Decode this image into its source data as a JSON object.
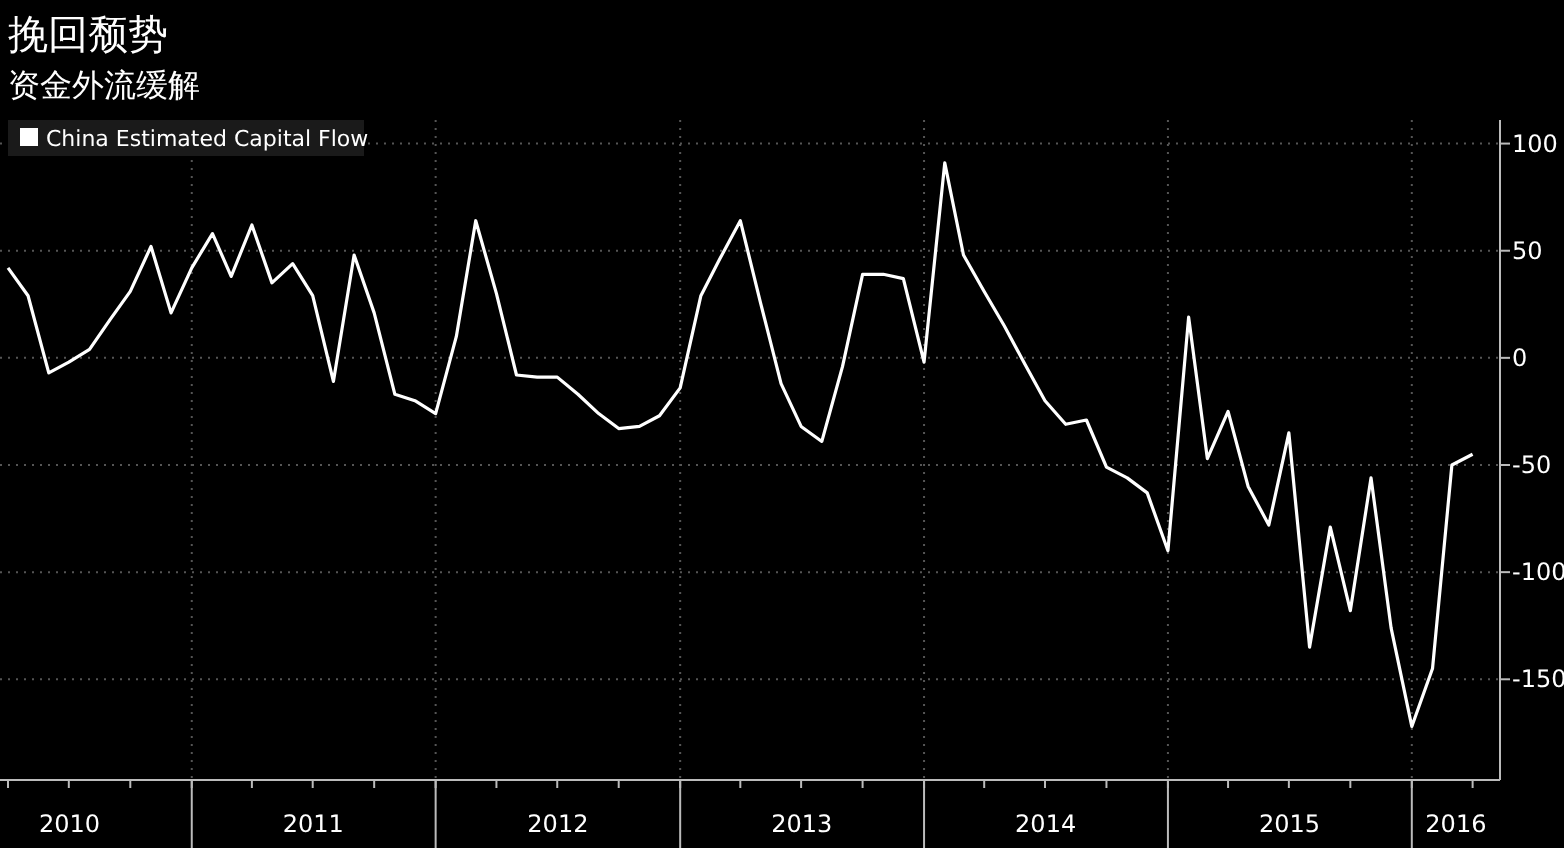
{
  "chart_data": {
    "type": "line",
    "title": "挽回颓势",
    "subtitle": "资金外流缓解",
    "legend": "top left",
    "grid": true,
    "line_style": "solid",
    "marker": "none",
    "x": [
      "2010-04",
      "2010-05",
      "2010-06",
      "2010-07",
      "2010-08",
      "2010-09",
      "2010-10",
      "2010-11",
      "2010-12",
      "2011-01",
      "2011-02",
      "2011-03",
      "2011-04",
      "2011-05",
      "2011-06",
      "2011-07",
      "2011-08",
      "2011-09",
      "2011-10",
      "2011-11",
      "2011-12",
      "2012-01",
      "2012-02",
      "2012-03",
      "2012-04",
      "2012-05",
      "2012-06",
      "2012-07",
      "2012-08",
      "2012-09",
      "2012-10",
      "2012-11",
      "2012-12",
      "2013-01",
      "2013-02",
      "2013-03",
      "2013-04",
      "2013-05",
      "2013-06",
      "2013-07",
      "2013-08",
      "2013-09",
      "2013-10",
      "2013-11",
      "2013-12",
      "2014-01",
      "2014-02",
      "2014-03",
      "2014-04",
      "2014-05",
      "2014-06",
      "2014-07",
      "2014-08",
      "2014-09",
      "2014-10",
      "2014-11",
      "2014-12",
      "2015-01",
      "2015-02",
      "2015-03",
      "2015-04",
      "2015-05",
      "2015-06",
      "2015-07",
      "2015-08",
      "2015-09",
      "2015-10",
      "2015-11",
      "2015-12",
      "2016-01",
      "2016-02",
      "2016-03",
      "2016-04"
    ],
    "series": [
      {
        "name": "China Estimated Capital Flow",
        "color": "#ffffff",
        "values": [
          42,
          29,
          -7,
          -2,
          4,
          18,
          31,
          52,
          21,
          42,
          58,
          38,
          62,
          35,
          44,
          29,
          -11,
          48,
          21,
          -17,
          -20,
          -26,
          10,
          64,
          30,
          -8,
          -9,
          -9,
          -17,
          -26,
          -33,
          -32,
          -27,
          -14,
          29,
          46,
          64,
          26,
          -12,
          -32,
          -39,
          -4,
          39,
          39,
          37,
          -2,
          91,
          48,
          31,
          15,
          -3,
          -20,
          -31,
          -29,
          -51,
          -56,
          -63,
          -90,
          19,
          -47,
          -25,
          -60,
          -78,
          -35,
          -135,
          -79,
          -118,
          -56,
          -126,
          -172,
          -145,
          -50,
          -45
        ]
      }
    ],
    "xlim": [
      "2010-03-20",
      "2016-05-12"
    ],
    "xticks": [
      {
        "value": "2010-07-02",
        "label": "2010"
      },
      {
        "value": "2011-07-02",
        "label": "2011"
      },
      {
        "value": "2012-07-02",
        "label": "2012"
      },
      {
        "value": "2013-07-02",
        "label": "2013"
      },
      {
        "value": "2014-07-02",
        "label": "2014"
      },
      {
        "value": "2015-07-02",
        "label": "2015"
      },
      {
        "value": "2016-03-07",
        "label": "2016"
      }
    ],
    "ylim": [
      -197,
      111
    ],
    "yticks": [
      -150,
      -100,
      -50,
      0,
      50,
      100
    ]
  }
}
